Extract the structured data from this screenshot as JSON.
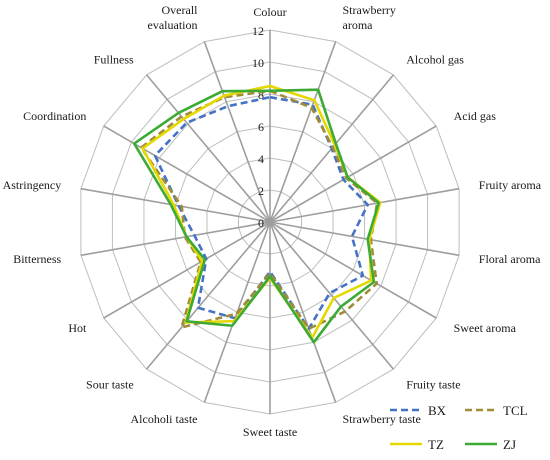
{
  "chart_data": {
    "type": "radar",
    "title": "",
    "axes": [
      {
        "label": "Colour",
        "lines": [
          "Colour"
        ]
      },
      {
        "label": "Strawberry aroma",
        "lines": [
          "Strawberry",
          "aroma"
        ]
      },
      {
        "label": "Alcohol gas",
        "lines": [
          "Alcohol gas"
        ]
      },
      {
        "label": "Acid gas",
        "lines": [
          "Acid gas"
        ]
      },
      {
        "label": "Fruity aroma",
        "lines": [
          "Fruity aroma"
        ]
      },
      {
        "label": "Floral aroma",
        "lines": [
          "Floral aroma"
        ]
      },
      {
        "label": "Sweet aroma",
        "lines": [
          "Sweet aroma"
        ]
      },
      {
        "label": "Fruity taste",
        "lines": [
          "Fruity taste"
        ]
      },
      {
        "label": "Strawberry taste",
        "lines": [
          "Strawberry taste"
        ]
      },
      {
        "label": "Sweet taste",
        "lines": [
          "Sweet taste"
        ]
      },
      {
        "label": "Alcoholi taste",
        "lines": [
          "Alcoholi taste"
        ]
      },
      {
        "label": "Sour taste",
        "lines": [
          "Sour taste"
        ]
      },
      {
        "label": "Hot",
        "lines": [
          "Hot"
        ]
      },
      {
        "label": "Bitterness",
        "lines": [
          "Bitterness"
        ]
      },
      {
        "label": "Astringency",
        "lines": [
          "Astringency"
        ]
      },
      {
        "label": "Coordination",
        "lines": [
          "Coordination"
        ]
      },
      {
        "label": "Fullness",
        "lines": [
          "Fullness"
        ]
      },
      {
        "label": "Overall evaluation",
        "lines": [
          "Overall",
          "evaluation"
        ]
      }
    ],
    "r_ticks": [
      "0",
      "2",
      "4",
      "6",
      "8",
      "10",
      "12"
    ],
    "r_range": [
      0,
      12
    ],
    "grid": true,
    "legend_position": "bottom-right",
    "series": [
      {
        "name": "BX",
        "color": "#4472C4",
        "dash": "dashed",
        "values": [
          7.8,
          7.8,
          6.0,
          5.3,
          6.2,
          5.2,
          6.7,
          5.8,
          7.1,
          3.1,
          6.4,
          7.0,
          4.6,
          4.8,
          5.8,
          8.3,
          8.1,
          7.7
        ]
      },
      {
        "name": "TCL",
        "color": "#A08C36",
        "dash": "dashed",
        "values": [
          8.2,
          7.6,
          6.1,
          5.5,
          6.8,
          6.4,
          7.7,
          7.3,
          7.1,
          3.2,
          6.1,
          8.6,
          5.0,
          5.4,
          5.6,
          9.3,
          8.6,
          8.3
        ]
      },
      {
        "name": "TZ",
        "color": "#E5D800",
        "dash": "solid",
        "values": [
          8.5,
          8.1,
          6.3,
          5.6,
          7.0,
          6.3,
          7.3,
          6.2,
          7.7,
          3.5,
          6.6,
          8.2,
          4.9,
          5.3,
          6.1,
          9.2,
          8.4,
          8.4
        ]
      },
      {
        "name": "ZJ",
        "color": "#3DAA35",
        "dash": "solid",
        "values": [
          8.2,
          8.8,
          6.4,
          5.6,
          6.9,
          6.2,
          7.5,
          6.9,
          8.0,
          3.4,
          6.9,
          8.1,
          4.7,
          5.3,
          6.3,
          9.8,
          8.9,
          8.7
        ]
      }
    ]
  }
}
